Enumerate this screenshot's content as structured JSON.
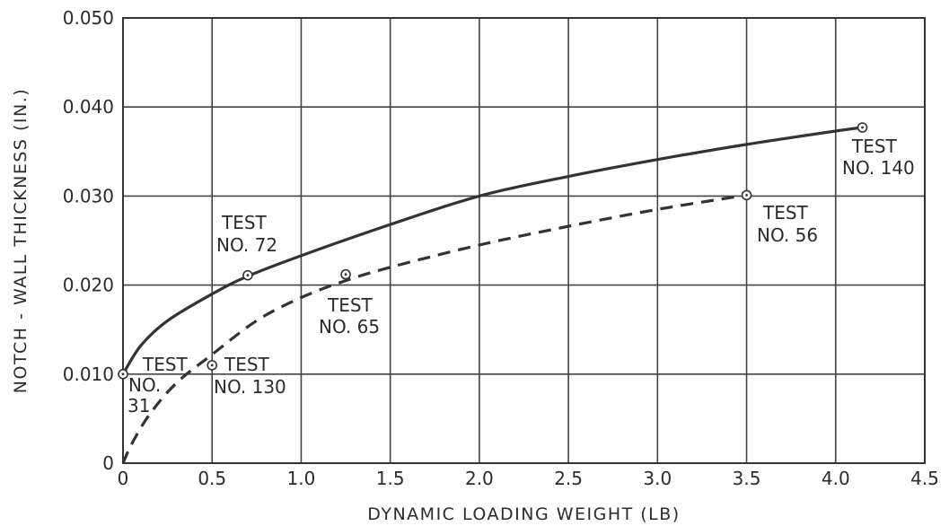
{
  "chart_data": {
    "type": "line",
    "xlabel": "DYNAMIC LOADING WEIGHT (LB)",
    "ylabel": "NOTCH - WALL THICKNESS (IN.)",
    "xlim": [
      0,
      4.5
    ],
    "ylim": [
      0,
      0.05
    ],
    "grid": true,
    "x_ticks": [
      0,
      0.5,
      1.0,
      1.5,
      2.0,
      2.5,
      3.0,
      3.5,
      4.0,
      4.5
    ],
    "x_tick_labels": [
      "0",
      "0.5",
      "1.0",
      "1.5",
      "2.0",
      "2.5",
      "3.0",
      "3.5",
      "4.0",
      "4.5"
    ],
    "y_ticks": [
      0,
      0.01,
      0.02,
      0.03,
      0.04,
      0.05
    ],
    "y_tick_labels": [
      "0",
      "0.010",
      "0.020",
      "0.030",
      "0.040",
      "0.050"
    ],
    "series": [
      {
        "style": "solid",
        "color": "#333333",
        "x": [
          0,
          0.1,
          0.25,
          0.5,
          0.7,
          1.0,
          1.5,
          2.0,
          2.5,
          3.0,
          3.5,
          4.0,
          4.15
        ],
        "y": [
          0.01,
          0.0132,
          0.016,
          0.019,
          0.021,
          0.0233,
          0.0268,
          0.03,
          0.0322,
          0.0341,
          0.0358,
          0.0373,
          0.0377
        ]
      },
      {
        "style": "dashed",
        "color": "#333333",
        "x": [
          0,
          0.05,
          0.15,
          0.3,
          0.5,
          0.75,
          1.0,
          1.25,
          1.5,
          2.0,
          2.5,
          3.0,
          3.5
        ],
        "y": [
          0.0,
          0.0022,
          0.0055,
          0.009,
          0.0122,
          0.016,
          0.0186,
          0.0205,
          0.022,
          0.0245,
          0.0266,
          0.0285,
          0.0301
        ]
      }
    ],
    "test_points": [
      {
        "x": 0.0,
        "y": 0.01
      },
      {
        "x": 0.5,
        "y": 0.011
      },
      {
        "x": 0.7,
        "y": 0.0211
      },
      {
        "x": 1.25,
        "y": 0.0212
      },
      {
        "x": 3.5,
        "y": 0.0301
      },
      {
        "x": 4.15,
        "y": 0.0377
      }
    ],
    "annotations": [
      {
        "lines": [
          "TEST",
          "NO.",
          "31"
        ]
      },
      {
        "lines": [
          "TEST",
          "NO. 130"
        ]
      },
      {
        "lines": [
          "TEST",
          "NO. 72"
        ]
      },
      {
        "lines": [
          "TEST",
          "NO. 65"
        ]
      },
      {
        "lines": [
          "TEST",
          "NO. 56"
        ]
      },
      {
        "lines": [
          "TEST",
          "NO. 140"
        ]
      }
    ]
  }
}
